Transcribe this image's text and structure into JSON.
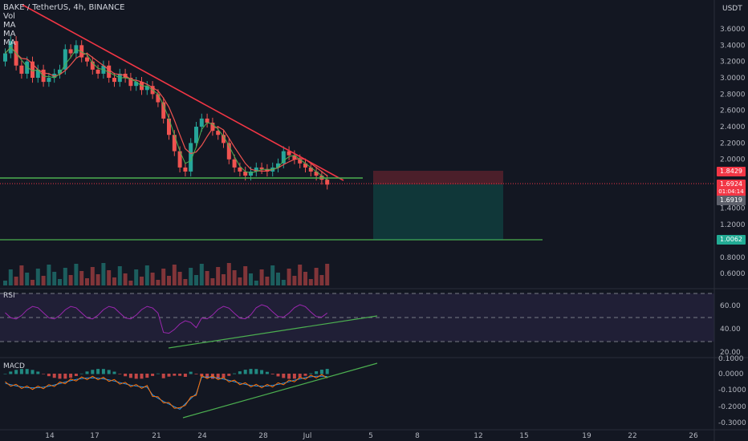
{
  "legend": {
    "symbol": "BAKE / TetherUS, 4h, BINANCE",
    "vol": "Vol",
    "ma1": "MA",
    "ma2": "MA",
    "ma3": "MA"
  },
  "currency": "USDT",
  "panes": {
    "rsi": "RSI",
    "macd": "MACD"
  },
  "price_axis": [
    "3.6000",
    "3.4000",
    "3.2000",
    "3.0000",
    "2.8000",
    "2.6000",
    "2.4000",
    "2.2000",
    "2.0000",
    "1.4000",
    "1.2000",
    "0.8000",
    "0.6000"
  ],
  "rsi_axis": [
    "60.00",
    "40.00",
    "20.00"
  ],
  "macd_axis": [
    "0.1000",
    "0.0000",
    "-0.1000",
    "-0.2000",
    "-0.3000"
  ],
  "time_axis": [
    "14",
    "17",
    "21",
    "24",
    "28",
    "Jul",
    "5",
    "8",
    "12",
    "15",
    "19",
    "22",
    "26"
  ],
  "tags": {
    "stop": "1.8429",
    "last": "1.6924",
    "countdown": "01:04:14",
    "entry": "1.6919",
    "target": "1.0062"
  },
  "colors": {
    "up": "#26a69a",
    "down": "#ef5350",
    "trend": "#f23645",
    "support": "#4caf50",
    "rsi": "#9c27b0",
    "macd": "#2196f3",
    "signal": "#ff6d00"
  },
  "chart_data": {
    "type": "candlestick",
    "symbol": "BAKE/USDT",
    "timeframe": "4h",
    "close_series_approx": [
      3.3,
      3.45,
      3.15,
      3.05,
      3.2,
      3.0,
      3.1,
      2.95,
      3.0,
      3.05,
      3.1,
      3.35,
      3.3,
      3.4,
      3.25,
      3.2,
      3.1,
      3.05,
      3.15,
      3.0,
      2.95,
      3.05,
      3.0,
      2.9,
      2.95,
      2.85,
      2.9,
      2.8,
      2.7,
      2.5,
      2.3,
      2.1,
      1.9,
      1.85,
      2.2,
      2.4,
      2.5,
      2.45,
      2.35,
      2.3,
      2.2,
      2.0,
      1.9,
      1.85,
      1.8,
      1.85,
      1.9,
      1.88,
      1.85,
      1.9,
      1.95,
      2.1,
      2.05,
      2.0,
      1.95,
      1.9,
      1.85,
      1.8,
      1.75,
      1.69
    ],
    "levels": {
      "stop": 1.8429,
      "entry": 1.6919,
      "target": 1.0062,
      "support": 1.77
    },
    "ylim": [
      0.5,
      3.8
    ],
    "rsi_range": [
      20,
      60
    ],
    "macd_range": [
      -0.3,
      0.1
    ]
  }
}
